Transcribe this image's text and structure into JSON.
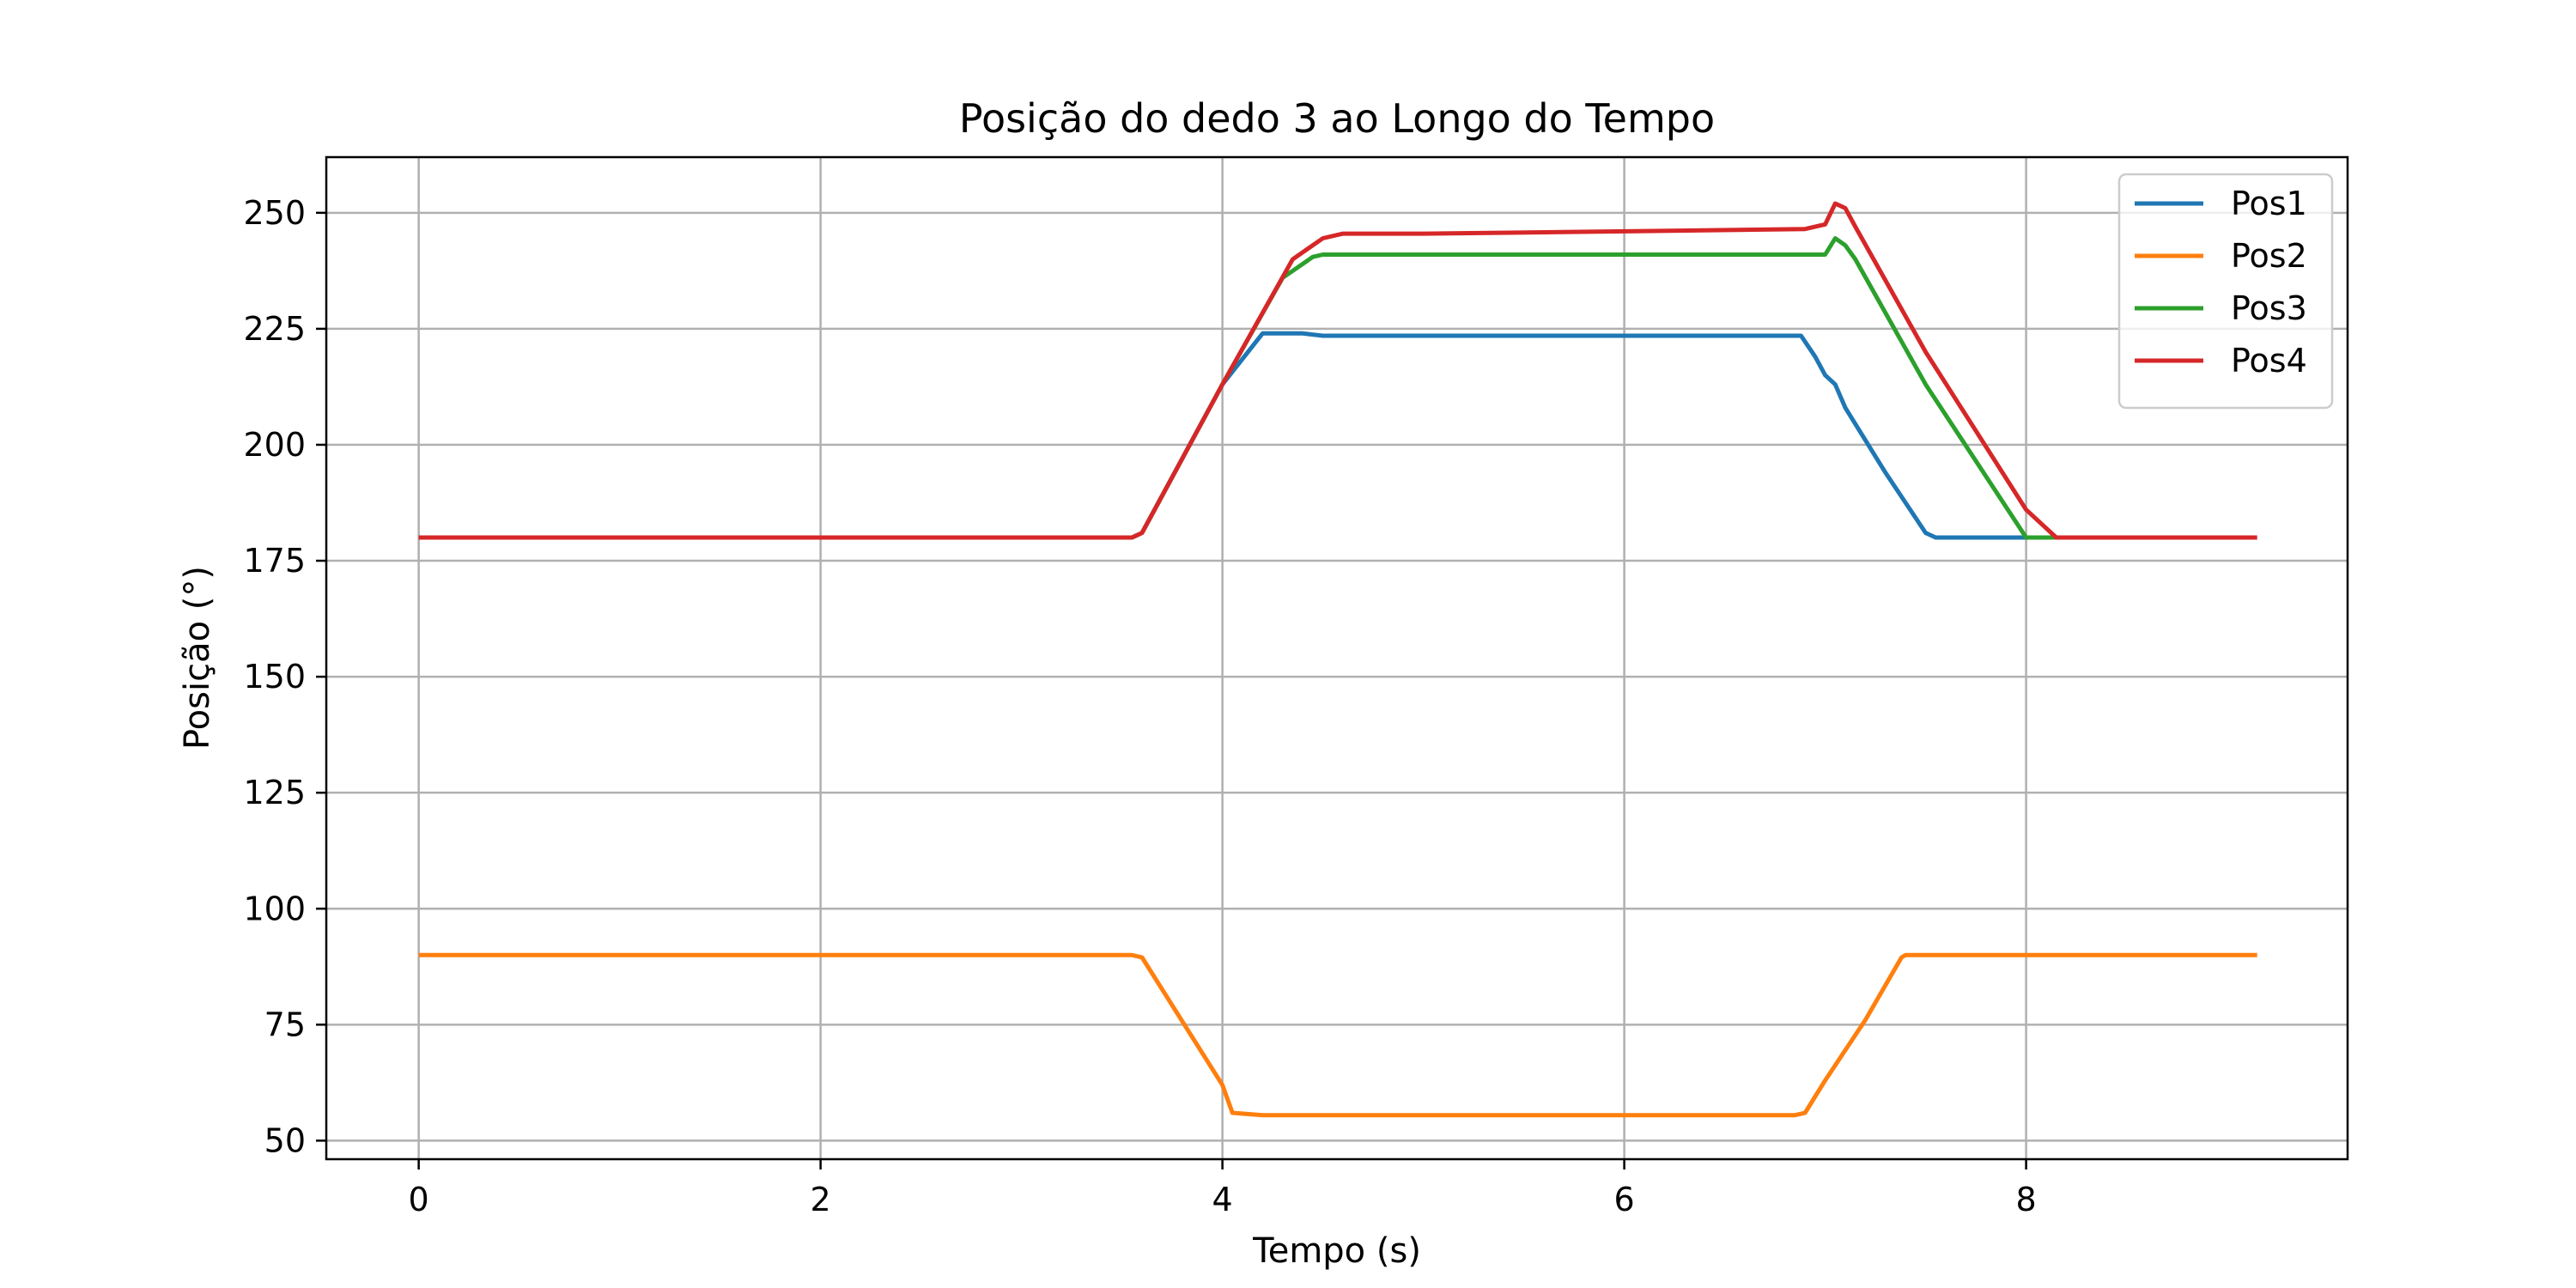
{
  "chart_data": {
    "type": "line",
    "title": "Posição do dedo 3 ao Longo do Tempo",
    "xlabel": "Tempo (s)",
    "ylabel": "Posição (°)",
    "xlim": [
      -0.46,
      9.6
    ],
    "ylim": [
      46,
      262
    ],
    "xticks": [
      0,
      2,
      4,
      6,
      8
    ],
    "yticks": [
      50,
      75,
      100,
      125,
      150,
      175,
      200,
      225,
      250
    ],
    "grid": true,
    "legend_position": "top-right",
    "series": [
      {
        "name": "Pos1",
        "color": "#1f77b4",
        "x": [
          0,
          3.55,
          3.6,
          3.65,
          4.0,
          4.2,
          4.4,
          4.5,
          5.5,
          6.5,
          6.88,
          6.95,
          7.0,
          7.05,
          7.1,
          7.3,
          7.5,
          7.55,
          7.6,
          8.0,
          8.1
        ],
        "y": [
          180,
          180,
          181,
          185,
          213,
          224,
          224,
          223.5,
          223.5,
          223.5,
          223.5,
          219,
          215,
          213,
          208,
          194,
          181,
          180,
          180,
          180,
          180
        ]
      },
      {
        "name": "Pos2",
        "color": "#ff7f0e",
        "x": [
          0,
          3.55,
          3.6,
          4.0,
          4.05,
          4.2,
          5.0,
          6.0,
          6.85,
          6.9,
          7.0,
          7.2,
          7.38,
          7.4,
          8.0,
          8.5,
          9.15
        ],
        "y": [
          90,
          90,
          89.5,
          62,
          56,
          55.5,
          55.5,
          55.5,
          55.5,
          56,
          63,
          76,
          89.5,
          90,
          90,
          90,
          90
        ]
      },
      {
        "name": "Pos3",
        "color": "#2ca02c",
        "x": [
          0,
          3.55,
          3.6,
          3.65,
          4.0,
          4.3,
          4.45,
          4.5,
          5.0,
          6.0,
          7.0,
          7.05,
          7.1,
          7.15,
          7.5,
          8.0,
          8.05,
          8.1,
          8.3
        ],
        "y": [
          180,
          180,
          181,
          185,
          213,
          236,
          240.5,
          241,
          241,
          241,
          241,
          244.5,
          243,
          240,
          213,
          180,
          180,
          180,
          180
        ]
      },
      {
        "name": "Pos4",
        "color": "#d62728",
        "x": [
          0,
          3.55,
          3.6,
          3.65,
          4.0,
          4.35,
          4.5,
          4.6,
          5.0,
          6.0,
          6.9,
          7.0,
          7.05,
          7.1,
          7.15,
          7.5,
          8.0,
          8.15,
          8.5,
          9.15
        ],
        "y": [
          180,
          180,
          181,
          185,
          213,
          240,
          244.5,
          245.5,
          245.5,
          246,
          246.5,
          247.5,
          252,
          251,
          247,
          220,
          186,
          180,
          180,
          180
        ]
      }
    ]
  }
}
